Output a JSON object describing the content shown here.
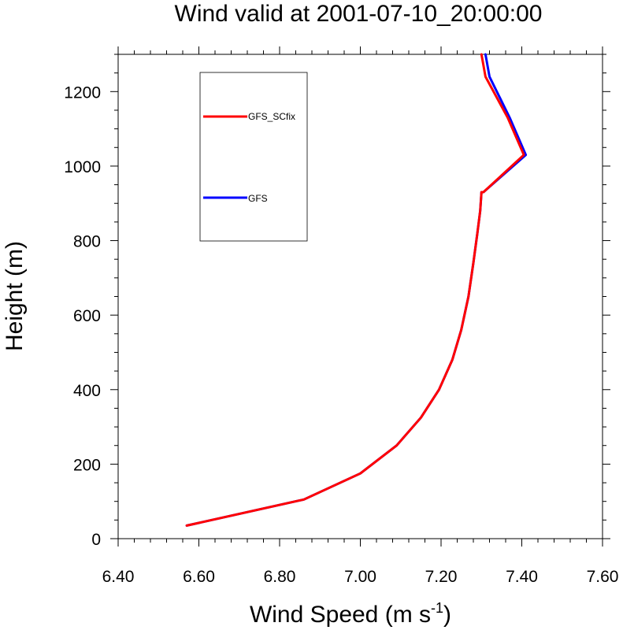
{
  "chart_data": {
    "type": "line",
    "title": "Wind valid at 2001-07-10_20:00:00",
    "xlabel_main": "Wind Speed (m s",
    "xlabel_sup": "-1",
    "xlabel_close": ")",
    "ylabel": "Height (m)",
    "xlim": [
      6.4,
      7.6
    ],
    "ylim": [
      0,
      1300
    ],
    "xticks": [
      6.4,
      6.6,
      6.8,
      7.0,
      7.2,
      7.4,
      7.6
    ],
    "xtick_labels": [
      "6.40",
      "6.60",
      "6.80",
      "7.00",
      "7.20",
      "7.40",
      "7.60"
    ],
    "yticks": [
      0,
      200,
      400,
      600,
      800,
      1000,
      1200
    ],
    "ytick_labels": [
      "0",
      "200",
      "400",
      "600",
      "800",
      "1000",
      "1200"
    ],
    "grid": false,
    "legend_position": "top-left",
    "series": [
      {
        "name": "GFS",
        "color": "#0000ff",
        "x": [
          6.57,
          6.86,
          7.0,
          7.09,
          7.15,
          7.195,
          7.228,
          7.25,
          7.268,
          7.28,
          7.29,
          7.297,
          7.3,
          7.305,
          7.41,
          7.37,
          7.32,
          7.31
        ],
        "y": [
          35,
          105,
          175,
          250,
          325,
          400,
          480,
          560,
          650,
          740,
          820,
          880,
          930,
          930,
          1030,
          1130,
          1240,
          1300
        ]
      },
      {
        "name": "GFS_SCfix",
        "color": "#ff0000",
        "x": [
          6.57,
          6.86,
          7.0,
          7.09,
          7.15,
          7.195,
          7.228,
          7.25,
          7.268,
          7.28,
          7.29,
          7.297,
          7.3,
          7.305,
          7.405,
          7.365,
          7.31,
          7.3
        ],
        "y": [
          35,
          105,
          175,
          250,
          325,
          400,
          480,
          560,
          650,
          740,
          820,
          880,
          930,
          930,
          1030,
          1130,
          1240,
          1300
        ]
      }
    ]
  }
}
